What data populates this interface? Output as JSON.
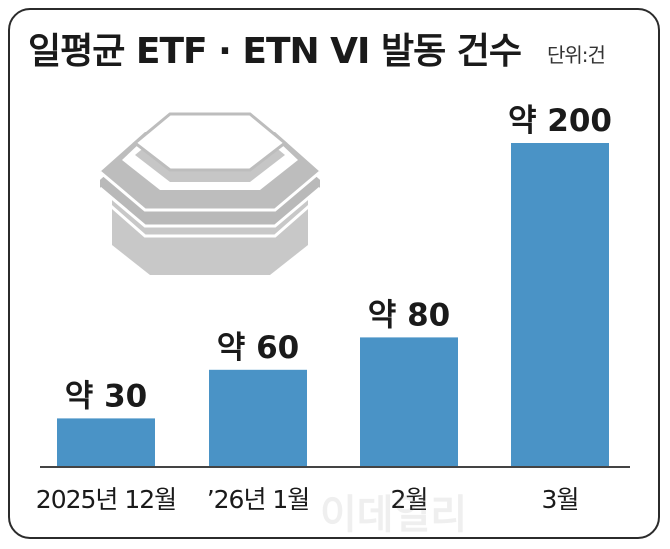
{
  "title": "일평균 ETF · ETN VI 발동 건수",
  "unit": "단위:건",
  "watermark": "이데일리",
  "colors": {
    "bar": "#4a93c6",
    "icon_light": "#c8c8c8",
    "icon_mid": "#b5b5b5",
    "baseline": "#444444"
  },
  "icon": "trading-halt-icon",
  "chart_data": {
    "type": "bar",
    "title": "일평균 ETF · ETN VI 발동 건수",
    "unit": "단위:건",
    "categories": [
      "2025년 12월",
      "’26년 1월",
      "2월",
      "3월"
    ],
    "values": [
      30,
      60,
      80,
      200
    ],
    "data_labels": [
      "약 30",
      "약 60",
      "약 80",
      "약 200"
    ],
    "ylim": [
      0,
      200
    ],
    "grid": false,
    "legend": "none"
  }
}
